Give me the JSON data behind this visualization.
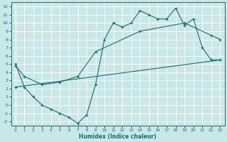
{
  "xlabel": "Humidex (Indice chaleur)",
  "bg_color": "#c8e8e8",
  "line_color": "#1a6b6b",
  "grid_color": "#ffffff",
  "xlim": [
    -0.5,
    23.5
  ],
  "ylim": [
    -2.5,
    12.5
  ],
  "xticks": [
    0,
    1,
    2,
    3,
    4,
    5,
    6,
    7,
    8,
    9,
    10,
    11,
    12,
    13,
    14,
    15,
    16,
    17,
    18,
    19,
    20,
    21,
    22,
    23
  ],
  "yticks": [
    -2,
    -1,
    0,
    1,
    2,
    3,
    4,
    5,
    6,
    7,
    8,
    9,
    10,
    11,
    12
  ],
  "line1_x": [
    0,
    1,
    2,
    3,
    4,
    5,
    6,
    7,
    8,
    9,
    10,
    11,
    12,
    13,
    14,
    15,
    16,
    17,
    18,
    19,
    20,
    21,
    22,
    23
  ],
  "line1_y": [
    5,
    2.2,
    1,
    0,
    -0.5,
    -1,
    -1.5,
    -2.2,
    -1.2,
    2.5,
    8,
    10,
    9.5,
    10,
    11.5,
    11,
    10.5,
    10.5,
    11.8,
    9.7,
    10.5,
    7,
    5.5,
    5.5
  ],
  "line2_x": [
    0,
    23
  ],
  "line2_y": [
    2.2,
    5.5
  ],
  "line3_x": [
    0,
    1,
    3,
    5,
    7,
    9,
    14,
    19,
    22,
    23
  ],
  "line3_y": [
    4.8,
    3.5,
    2.5,
    2.8,
    3.5,
    6.5,
    9,
    10,
    8.5,
    8
  ]
}
